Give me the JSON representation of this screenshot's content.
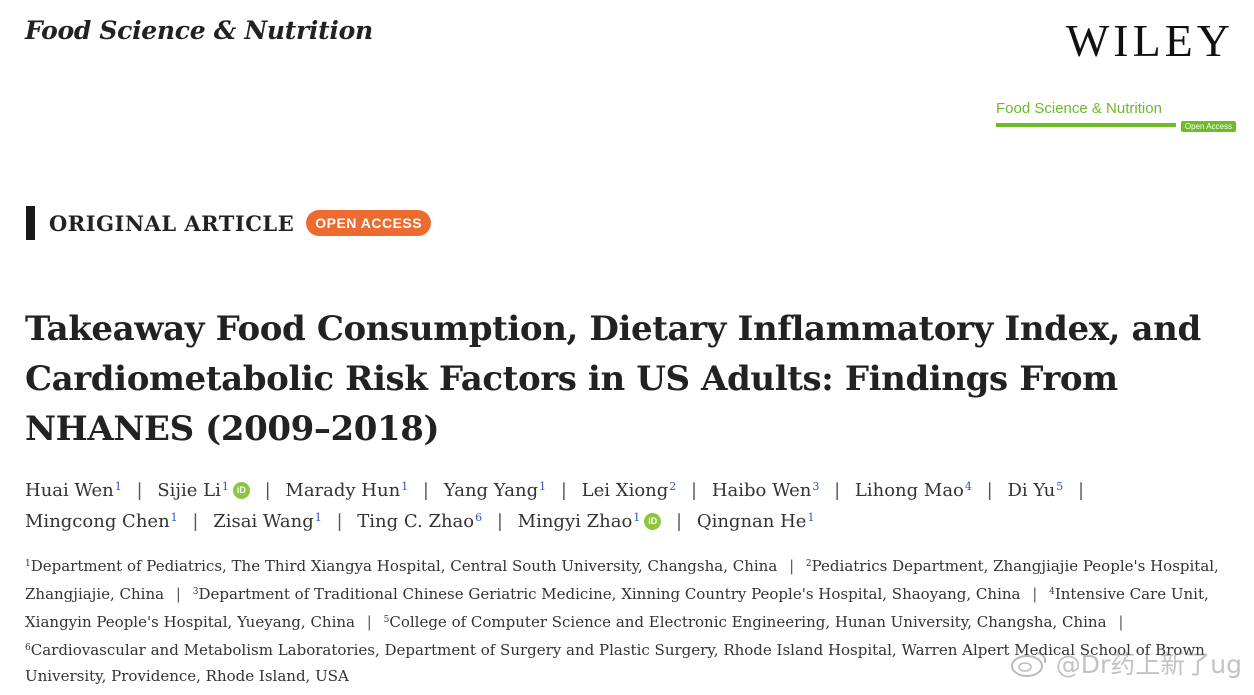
{
  "header": {
    "journal_name": "Food Science & Nutrition",
    "publisher": "WILEY",
    "badge_title": "Food Science & Nutrition",
    "badge_oa": "Open Access"
  },
  "article": {
    "type": "ORIGINAL ARTICLE",
    "access_label": "OPEN ACCESS",
    "title": "Takeaway Food Consumption, Dietary Inflammatory Index, and Cardiometabolic Risk Factors in US Adults: Findings From NHANES (2009–2018)"
  },
  "authors": [
    {
      "name": "Huai Wen",
      "sup": "1",
      "orcid": false
    },
    {
      "name": "Sijie Li",
      "sup": "1",
      "orcid": true
    },
    {
      "name": "Marady Hun",
      "sup": "1",
      "orcid": false
    },
    {
      "name": "Yang Yang",
      "sup": "1",
      "orcid": false
    },
    {
      "name": "Lei Xiong",
      "sup": "2",
      "orcid": false
    },
    {
      "name": "Haibo Wen",
      "sup": "3",
      "orcid": false
    },
    {
      "name": "Lihong Mao",
      "sup": "4",
      "orcid": false
    },
    {
      "name": "Di Yu",
      "sup": "5",
      "orcid": false
    },
    {
      "name": "Mingcong Chen",
      "sup": "1",
      "orcid": false
    },
    {
      "name": "Zisai Wang",
      "sup": "1",
      "orcid": false
    },
    {
      "name": "Ting C. Zhao",
      "sup": "6",
      "orcid": false
    },
    {
      "name": "Mingyi Zhao",
      "sup": "1",
      "orcid": true
    },
    {
      "name": "Qingnan He",
      "sup": "1",
      "orcid": false
    }
  ],
  "orcid_label": "iD",
  "affiliations": [
    {
      "sup": "1",
      "text": "Department of Pediatrics, The Third Xiangya Hospital, Central South University, Changsha, China"
    },
    {
      "sup": "2",
      "text": "Pediatrics Department, Zhangjiajie People's Hospital, Zhangjiajie, China"
    },
    {
      "sup": "3",
      "text": "Department of Traditional Chinese Geriatric Medicine, Xinning Country People's Hospital, Shaoyang, China"
    },
    {
      "sup": "4",
      "text": "Intensive Care Unit, Xiangyin People's Hospital, Yueyang, China"
    },
    {
      "sup": "5",
      "text": "College of Computer Science and Electronic Engineering, Hunan University, Changsha, China"
    },
    {
      "sup": "6",
      "text": "Cardiovascular and Metabolism Laboratories, Department of Surgery and Plastic Surgery, Rhode Island Hospital, Warren Alpert Medical School of Brown University, Providence, Rhode Island, USA"
    }
  ],
  "watermark": "@Dr药上新了ug"
}
